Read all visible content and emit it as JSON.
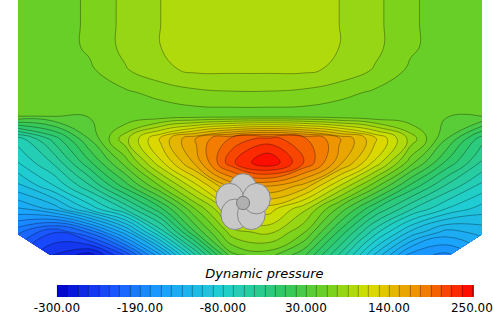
{
  "chart_data": {
    "type": "contour",
    "colorbar_title": "Dynamic pressure",
    "colorbar_range": [
      -300,
      250
    ],
    "colorbar_ticks": [
      {
        "value": -300,
        "label": "-300.00"
      },
      {
        "value": -190,
        "label": "-190.00"
      },
      {
        "value": -80,
        "label": "-80.000"
      },
      {
        "value": 30,
        "label": "30.000"
      },
      {
        "value": 140,
        "label": "140.00"
      },
      {
        "value": 250,
        "label": "250.00"
      }
    ],
    "tick_labels": false,
    "cells": [
      [
        45,
        50,
        60,
        75,
        85,
        90,
        90,
        90,
        90,
        85,
        75,
        60,
        50,
        45
      ],
      [
        45,
        50,
        60,
        75,
        85,
        90,
        90,
        90,
        90,
        85,
        75,
        60,
        50,
        45
      ],
      [
        45,
        50,
        60,
        75,
        85,
        90,
        90,
        90,
        90,
        85,
        75,
        60,
        50,
        45
      ],
      [
        45,
        48,
        55,
        70,
        82,
        88,
        88,
        88,
        88,
        82,
        70,
        55,
        48,
        45
      ],
      [
        45,
        45,
        50,
        55,
        62,
        68,
        70,
        70,
        68,
        62,
        55,
        50,
        45,
        45
      ],
      [
        45,
        45,
        45,
        45,
        48,
        50,
        50,
        50,
        50,
        48,
        45,
        45,
        45,
        45
      ],
      [
        -60,
        -20,
        30,
        80,
        130,
        170,
        200,
        215,
        200,
        170,
        130,
        80,
        30,
        -20
      ],
      [
        -80,
        -50,
        0,
        50,
        110,
        160,
        220,
        250,
        210,
        160,
        110,
        50,
        0,
        -40
      ],
      [
        -110,
        -80,
        -40,
        10,
        60,
        110,
        160,
        170,
        150,
        100,
        50,
        0,
        -40,
        -70
      ],
      [
        -150,
        -130,
        -90,
        -50,
        0,
        60,
        110,
        120,
        90,
        40,
        -10,
        -50,
        -80,
        -100
      ],
      [
        -200,
        -230,
        -200,
        -140,
        -60,
        20,
        80,
        90,
        60,
        0,
        -60,
        -110,
        -140,
        -130
      ],
      [
        null,
        -260,
        -280,
        -230,
        -150,
        -50,
        40,
        50,
        20,
        -40,
        -110,
        -170,
        -180,
        null
      ]
    ]
  }
}
